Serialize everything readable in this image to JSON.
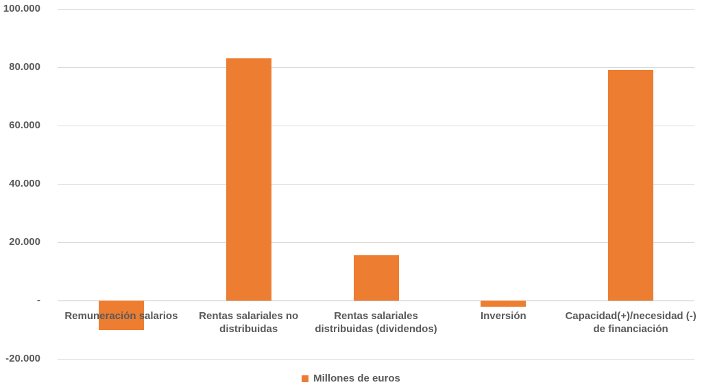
{
  "chart_data": {
    "type": "bar",
    "title": "",
    "categories": [
      [
        "Remuneración salarios"
      ],
      [
        "Rentas salariales no",
        "distribuidas"
      ],
      [
        "Rentas salariales",
        "distribuidas (dividendos)"
      ],
      [
        "Inversión"
      ],
      [
        "Capacidad(+)/necesidad (-)",
        "de financiación"
      ]
    ],
    "series": [
      {
        "name": "Millones de euros",
        "values": [
          -10000,
          83000,
          15500,
          -2000,
          79000
        ]
      }
    ],
    "ylabel": "",
    "xlabel": "",
    "ylim": [
      -20000,
      100000
    ],
    "ytick_interval": 20000,
    "ytick_labels": [
      "100.000",
      "80.000",
      "60.000",
      "40.000",
      "20.000",
      "-",
      "-20.000"
    ],
    "grid": true,
    "legend_position": "bottom",
    "bar_color": "#ED7D31",
    "gridline_color": "#D9D9D9",
    "zero_line_color": "#C0C0C0",
    "text_color": "#595959"
  }
}
